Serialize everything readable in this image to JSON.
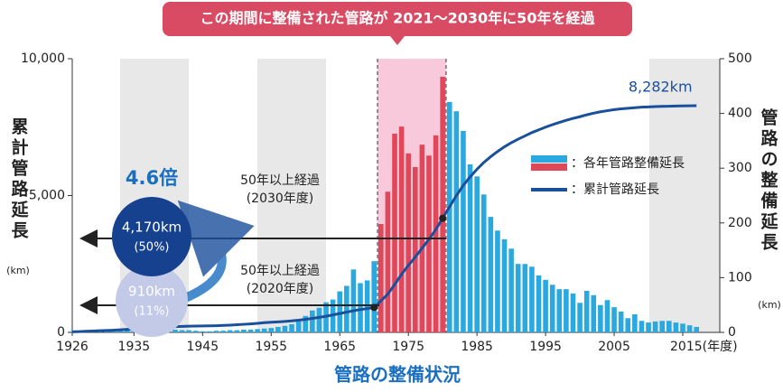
{
  "chart_data": {
    "type": "bar_line",
    "banner": "この期間に整備された管路が 2021～2030年に50年を経過",
    "title": "管路の整備状況",
    "y_label": "累計管路延長",
    "y_unit": "(km)",
    "y2_label": "管路の整備延長",
    "y2_unit": "(km)",
    "x": [
      1926,
      1927,
      1928,
      1929,
      1930,
      1931,
      1932,
      1933,
      1934,
      1935,
      1936,
      1937,
      1938,
      1939,
      1940,
      1941,
      1942,
      1943,
      1944,
      1945,
      1946,
      1947,
      1948,
      1949,
      1950,
      1951,
      1952,
      1953,
      1954,
      1955,
      1956,
      1957,
      1958,
      1959,
      1960,
      1961,
      1962,
      1963,
      1964,
      1965,
      1966,
      1967,
      1968,
      1969,
      1970,
      1971,
      1972,
      1973,
      1974,
      1975,
      1976,
      1977,
      1978,
      1979,
      1980,
      1981,
      1982,
      1983,
      1984,
      1985,
      1986,
      1987,
      1988,
      1989,
      1990,
      1991,
      1992,
      1993,
      1994,
      1995,
      1996,
      1997,
      1998,
      1999,
      2000,
      2001,
      2002,
      2003,
      2004,
      2005,
      2006,
      2007,
      2008,
      2009,
      2010,
      2011,
      2012,
      2013,
      2014,
      2015,
      2016,
      2017
    ],
    "series": [
      {
        "name": "：各年管路整備延長",
        "color": "#2aa9e0",
        "highlight_color": "#e0485a",
        "axis": "y2",
        "values": [
          2,
          2,
          2,
          3,
          3,
          3,
          3,
          4,
          4,
          5,
          5,
          5,
          6,
          6,
          6,
          5,
          4,
          4,
          3,
          2,
          2,
          3,
          3,
          4,
          4,
          5,
          5,
          6,
          7,
          8,
          10,
          12,
          15,
          20,
          30,
          40,
          45,
          55,
          60,
          75,
          85,
          115,
          90,
          95,
          130,
          198,
          257,
          363,
          376,
          327,
          302,
          343,
          323,
          360,
          467,
          421,
          404,
          368,
          307,
          285,
          252,
          211,
          186,
          170,
          153,
          125,
          125,
          120,
          104,
          96,
          87,
          79,
          79,
          71,
          54,
          76,
          68,
          50,
          59,
          46,
          38,
          26,
          33,
          21,
          18,
          20,
          21,
          21,
          18,
          16,
          13,
          10
        ]
      },
      {
        "name": "：累計管路延長",
        "color": "#1a4f9c",
        "values": [
          20,
          30,
          40,
          50,
          60,
          70,
          80,
          95,
          110,
          125,
          140,
          155,
          170,
          185,
          200,
          210,
          220,
          225,
          230,
          235,
          240,
          245,
          255,
          265,
          280,
          295,
          310,
          330,
          355,
          370,
          385,
          400,
          420,
          445,
          475,
          510,
          550,
          590,
          640,
          690,
          740,
          790,
          835,
          870,
          910,
          1150,
          1400,
          1750,
          2120,
          2450,
          2750,
          3080,
          3400,
          3760,
          4170,
          4590,
          5000,
          5370,
          5680,
          5960,
          6210,
          6420,
          6610,
          6780,
          6930,
          7060,
          7180,
          7300,
          7400,
          7500,
          7590,
          7670,
          7750,
          7820,
          7880,
          7950,
          8010,
          8060,
          8100,
          8140,
          8170,
          8190,
          8210,
          8230,
          8240,
          8250,
          8260,
          8265,
          8270,
          8275,
          8278,
          8282
        ]
      }
    ],
    "end_label": "8,282km",
    "highlight_range": [
      1971,
      1980
    ],
    "xlim": [
      1926,
      2020
    ],
    "xticks": [
      1926,
      1935,
      1945,
      1955,
      1965,
      1975,
      1985,
      1995,
      2005,
      {
        "value": 2015,
        "label": "2015(年度)"
      }
    ],
    "ylim": [
      0,
      10000
    ],
    "yticks": [
      0,
      {
        "value": 5000,
        "label": "5,000"
      },
      {
        "value": 10000,
        "label": "10,000"
      }
    ],
    "y2lim": [
      0,
      500
    ],
    "y2ticks": [
      0,
      100,
      200,
      300,
      400,
      500
    ],
    "ratio": "4.6倍",
    "circle_2030": {
      "value": "4,170km",
      "share": "(50%)"
    },
    "circle_2020": {
      "value": "910km",
      "share": "(11%)"
    },
    "arrow_2030": {
      "line1": "50年以上経過",
      "line2": "(2030年度)"
    },
    "arrow_2020": {
      "line1": "50年以上経過",
      "line2": "(2020年度)"
    }
  }
}
